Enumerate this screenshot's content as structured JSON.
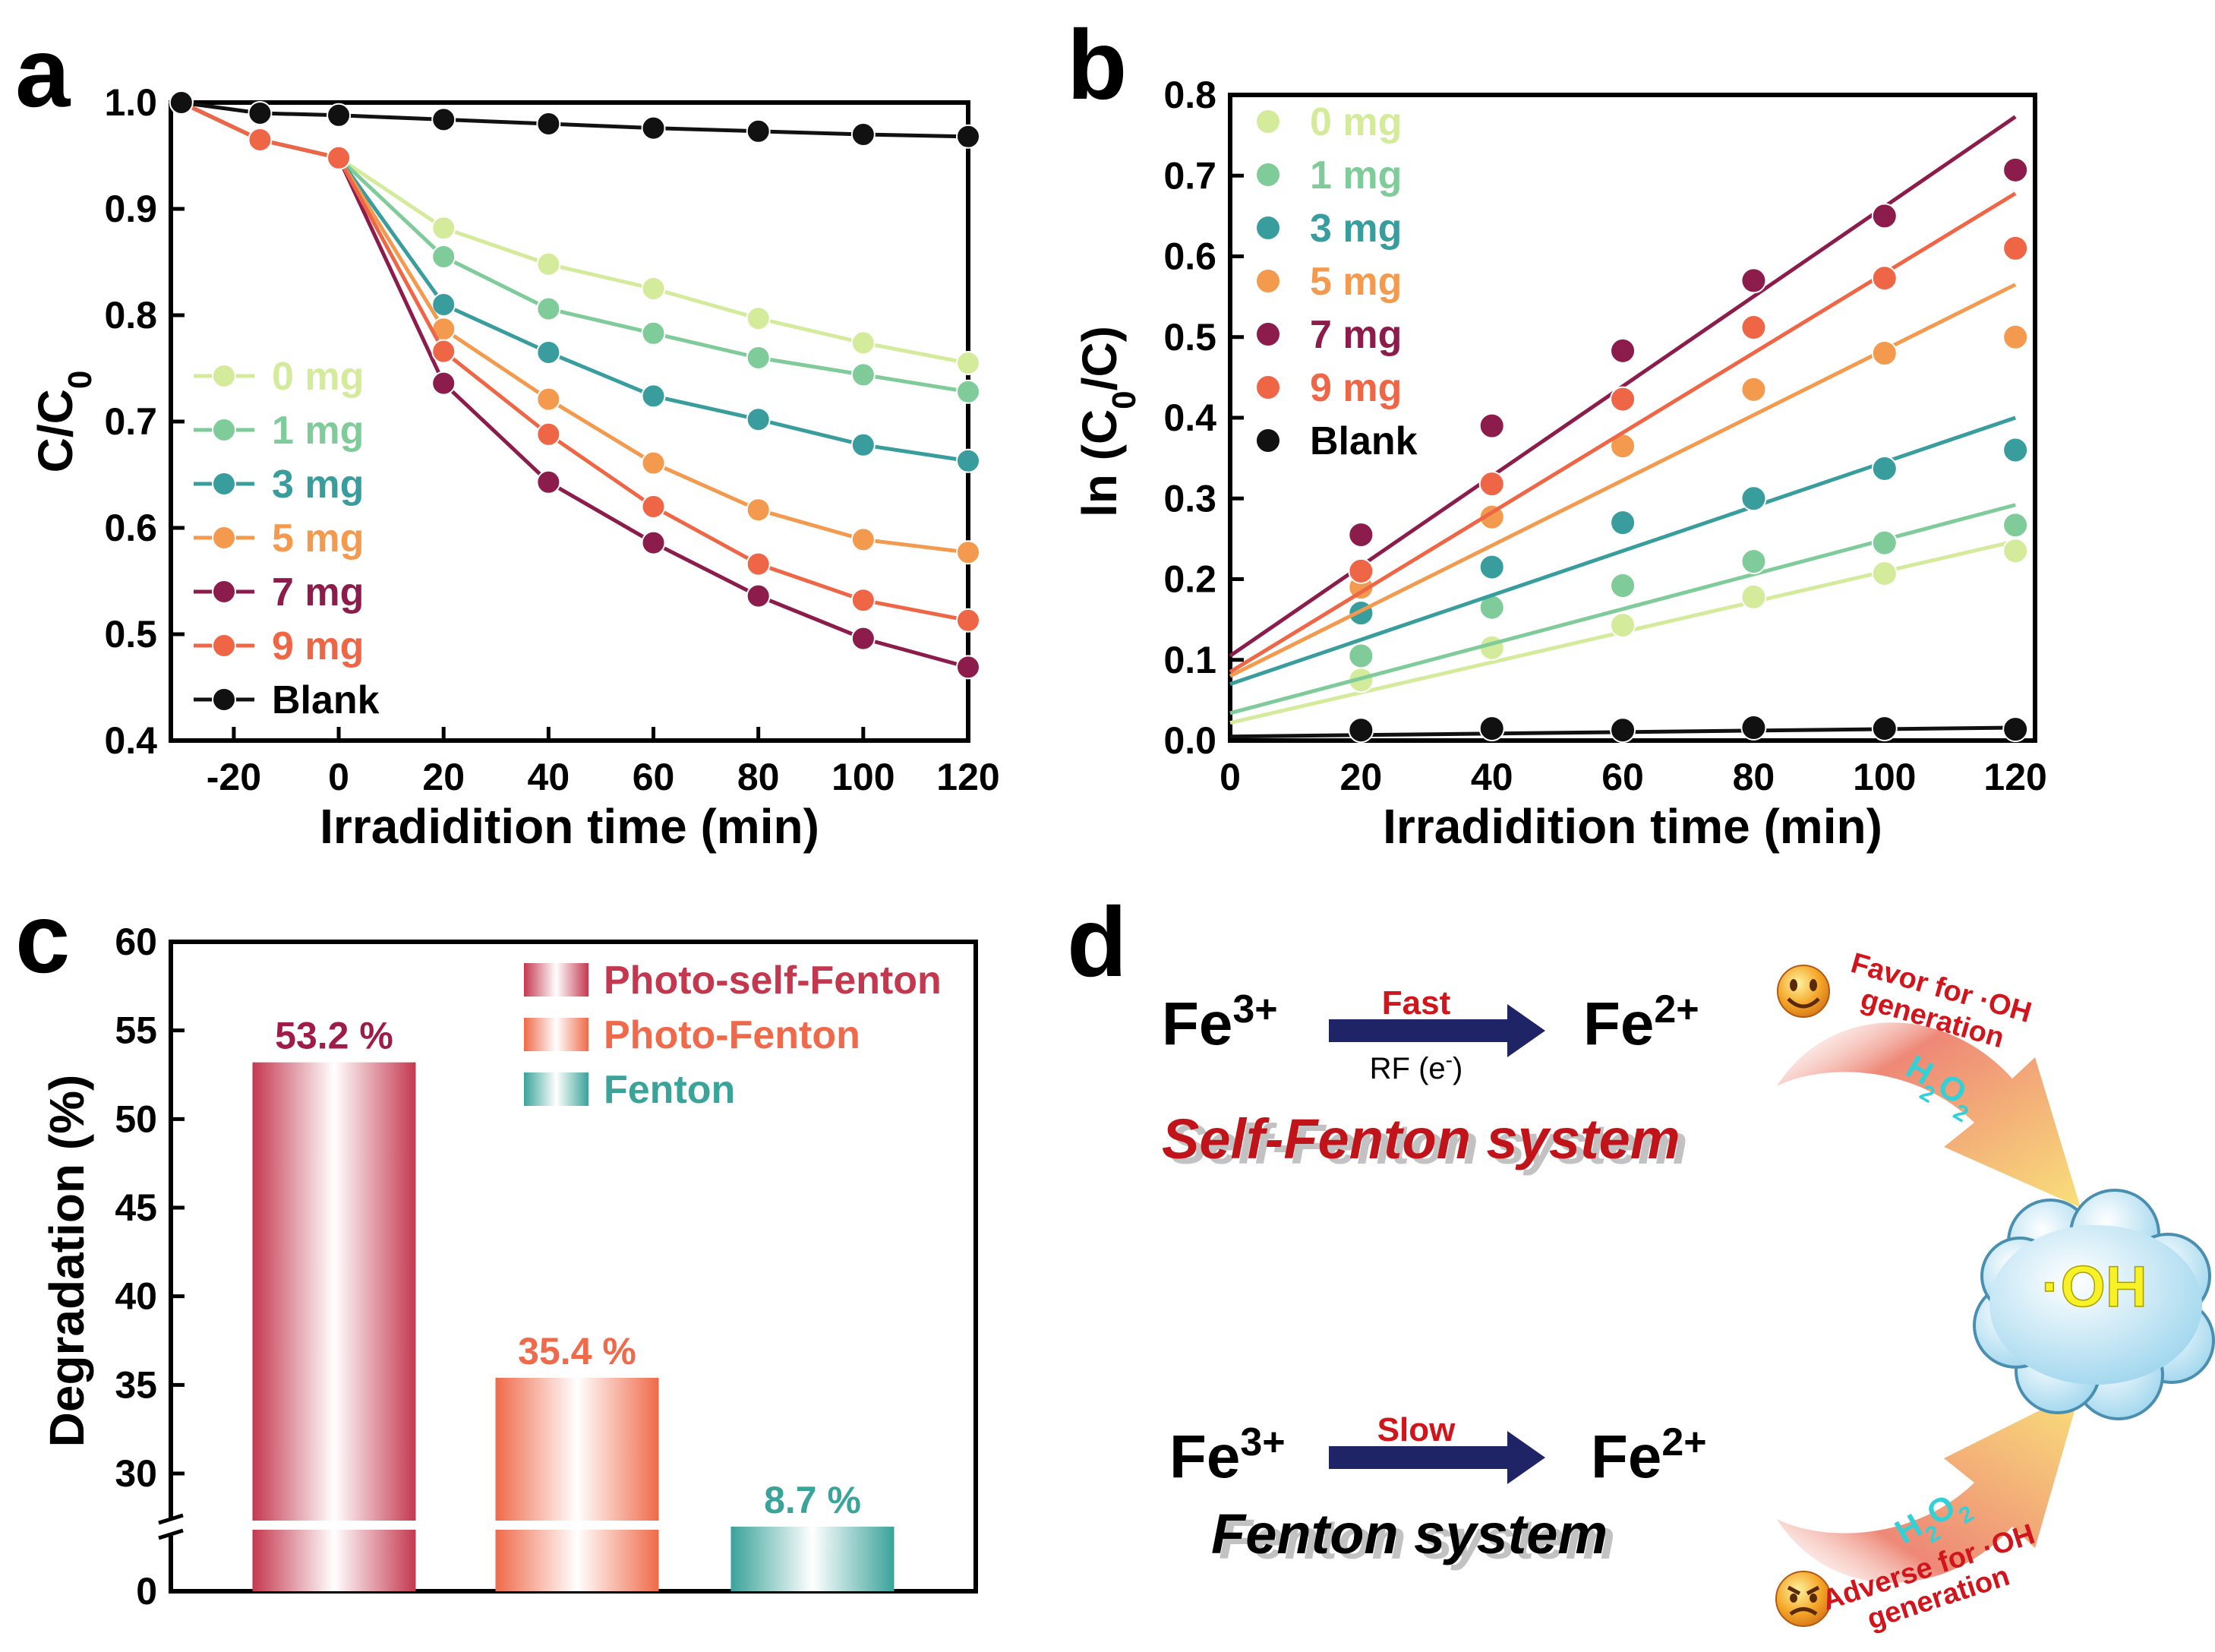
{
  "chart_data": [
    {
      "panel": "a",
      "type": "line",
      "xlabel": "Irradidition time (min)",
      "ylabel": "C/C",
      "ylabel_sub": "0",
      "x": [
        -30,
        -15,
        0,
        20,
        40,
        60,
        80,
        100,
        120
      ],
      "xlim": [
        -32,
        120
      ],
      "ylim": [
        0.4,
        1.0
      ],
      "xticks": [
        -20,
        0,
        20,
        40,
        60,
        80,
        100,
        120
      ],
      "yticks": [
        0.4,
        0.5,
        0.6,
        0.7,
        0.8,
        0.9,
        1.0
      ],
      "series": [
        {
          "name": "0 mg",
          "color": "#d4eb9b",
          "values": [
            1.0,
            0.965,
            0.948,
            0.882,
            0.848,
            0.825,
            0.797,
            0.774,
            0.755
          ]
        },
        {
          "name": "1 mg",
          "color": "#7fcc9a",
          "values": [
            1.0,
            0.965,
            0.948,
            0.855,
            0.806,
            0.783,
            0.76,
            0.744,
            0.728
          ]
        },
        {
          "name": "3 mg",
          "color": "#3a9d9d",
          "values": [
            1.0,
            0.965,
            0.948,
            0.81,
            0.765,
            0.724,
            0.702,
            0.678,
            0.663
          ]
        },
        {
          "name": "5 mg",
          "color": "#f49a4e",
          "values": [
            1.0,
            0.965,
            0.948,
            0.787,
            0.721,
            0.661,
            0.617,
            0.589,
            0.577
          ]
        },
        {
          "name": "7 mg",
          "color": "#8b1c4b",
          "values": [
            1.0,
            0.965,
            0.948,
            0.736,
            0.643,
            0.586,
            0.536,
            0.496,
            0.469
          ]
        },
        {
          "name": "9 mg",
          "color": "#ee6645",
          "values": [
            1.0,
            0.965,
            0.948,
            0.766,
            0.688,
            0.62,
            0.566,
            0.532,
            0.513
          ]
        },
        {
          "name": "Blank",
          "color": "#111111",
          "values": [
            1.0,
            0.99,
            0.988,
            0.984,
            0.98,
            0.976,
            0.973,
            0.97,
            0.968
          ]
        }
      ]
    },
    {
      "panel": "b",
      "type": "scatter",
      "xlabel": "Irradidition time (min)",
      "ylabel_parts": [
        "ln (C",
        "0",
        "/C)"
      ],
      "x": [
        20,
        40,
        60,
        80,
        100,
        120
      ],
      "xlim": [
        0,
        123
      ],
      "ylim": [
        0,
        0.8
      ],
      "xticks": [
        0,
        20,
        40,
        60,
        80,
        100,
        120
      ],
      "yticks": [
        0.0,
        0.1,
        0.2,
        0.3,
        0.4,
        0.5,
        0.6,
        0.7,
        0.8
      ],
      "series": [
        {
          "name": "0 mg",
          "color": "#d4eb9b",
          "values": [
            0.075,
            0.115,
            0.143,
            0.178,
            0.207,
            0.235
          ],
          "fit": [
            0.022,
            0.247
          ]
        },
        {
          "name": "1 mg",
          "color": "#7fcc9a",
          "values": [
            0.105,
            0.165,
            0.192,
            0.222,
            0.245,
            0.267
          ],
          "fit": [
            0.034,
            0.292
          ]
        },
        {
          "name": "3 mg",
          "color": "#3a9d9d",
          "values": [
            0.158,
            0.215,
            0.27,
            0.3,
            0.337,
            0.36
          ],
          "fit": [
            0.07,
            0.4
          ]
        },
        {
          "name": "5 mg",
          "color": "#f49a4e",
          "values": [
            0.19,
            0.277,
            0.365,
            0.435,
            0.48,
            0.5
          ],
          "fit": [
            0.08,
            0.565
          ]
        },
        {
          "name": "7 mg",
          "color": "#8b1c4b",
          "values": [
            0.255,
            0.39,
            0.483,
            0.57,
            0.65,
            0.707
          ],
          "fit": [
            0.105,
            0.773
          ]
        },
        {
          "name": "9 mg",
          "color": "#ee6645",
          "values": [
            0.21,
            0.318,
            0.423,
            0.512,
            0.573,
            0.61
          ],
          "fit": [
            0.085,
            0.678
          ]
        },
        {
          "name": "Blank",
          "color": "#111111",
          "values": [
            0.013,
            0.015,
            0.013,
            0.016,
            0.015,
            0.014
          ],
          "fit": [
            0.005,
            0.016
          ]
        }
      ]
    },
    {
      "panel": "c",
      "type": "bar",
      "ylabel": "Degradation (%)",
      "categories": [
        "Photo-self-Fenton",
        "Photo-Fenton",
        "Fenton"
      ],
      "values": [
        53.2,
        35.4,
        8.7
      ],
      "value_labels": [
        "53.2 %",
        "35.4 %",
        "8.7 %"
      ],
      "colors": [
        "#c4384f",
        "#ef6a4a",
        "#3aa39a"
      ],
      "label_colors": [
        "#a01c48",
        "#ef6a4a",
        "#3aa39a"
      ],
      "ylim": [
        0,
        60
      ],
      "axis_break": [
        8.7,
        27
      ],
      "yticks": [
        0,
        30,
        35,
        40,
        45,
        50,
        55,
        60
      ]
    }
  ],
  "diagram": {
    "panel": "d",
    "self_fenton": {
      "from": "Fe",
      "from_sup": "3+",
      "to": "Fe",
      "to_sup": "2+",
      "rate": "Fast",
      "via": "RF (e",
      "via_sup": "-",
      "via_end": ")",
      "title": "Self-Fenton system"
    },
    "fenton": {
      "from": "Fe",
      "from_sup": "3+",
      "to": "Fe",
      "to_sup": "2+",
      "rate": "Slow",
      "title": "Fenton system"
    },
    "favor_line1": "Favor for ·OH",
    "favor_line2": "generation",
    "adverse_line1": "Adverse for ·OH",
    "adverse_line2": "generation",
    "h2o2": "H",
    "h2o2_sub1": "2",
    "h2o2_mid": "O",
    "h2o2_sub2": "2",
    "oh": "·OH",
    "colors": {
      "accent_red": "#d0161c",
      "arrow_navy": "#1f2466",
      "h2o2": "#35d0d6",
      "oh": "#f7f228",
      "cloud": "#b8e3f3"
    }
  }
}
